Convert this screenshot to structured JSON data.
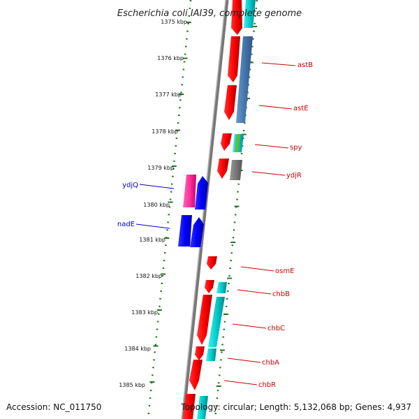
{
  "title": "Escherichia coli IAI39, complete genome",
  "footer": {
    "accession": "Accession: NC_011750",
    "summary": "Topology: circular; Length: 5,132,068 bp; Genes: 4,937"
  },
  "colors": {
    "forward_cds": "#ff0000",
    "reverse_cds": "#0000ff",
    "forward_label": "#cc0000",
    "reverse_label": "#0000cc",
    "pink": "#ff3399",
    "cyan": "#00cccc",
    "steel_blue": "#4477aa",
    "grey": "#777777",
    "green": "#66bb33",
    "tick": "#227722"
  },
  "kbp_ticks": [
    "1375 kbp",
    "1376 kbp",
    "1377 kbp",
    "1378 kbp",
    "1379 kbp",
    "1380 kbp",
    "1381 kbp",
    "1382 kbp",
    "1383 kbp",
    "1384 kbp",
    "1385 kbp"
  ],
  "gene_labels": [
    {
      "name": "astB",
      "strand": "forward"
    },
    {
      "name": "astE",
      "strand": "forward"
    },
    {
      "name": "spy",
      "strand": "forward"
    },
    {
      "name": "ydjR",
      "strand": "forward"
    },
    {
      "name": "ydjQ",
      "strand": "reverse"
    },
    {
      "name": "nadE",
      "strand": "reverse"
    },
    {
      "name": "osmE",
      "strand": "forward"
    },
    {
      "name": "chbB",
      "strand": "forward"
    },
    {
      "name": "chbC",
      "strand": "forward"
    },
    {
      "name": "chbA",
      "strand": "forward"
    },
    {
      "name": "chbR",
      "strand": "forward"
    }
  ]
}
